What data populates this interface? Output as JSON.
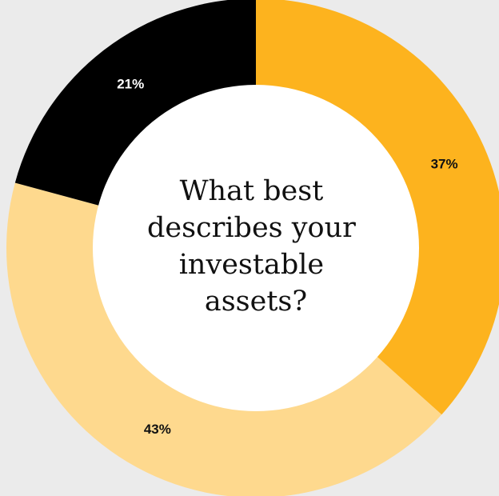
{
  "chart_data": {
    "type": "pie",
    "variant": "donut",
    "title": "",
    "center_text": [
      "What best",
      "describes your",
      "investable",
      "assets?"
    ],
    "slices": [
      {
        "label": "37%",
        "value": 37,
        "color": "#fdb31e",
        "label_color": "#111111"
      },
      {
        "label": "43%",
        "value": 43,
        "color": "#fed98e",
        "label_color": "#111111"
      },
      {
        "label": "21%",
        "value": 21,
        "color": "#000000",
        "label_color": "#ffffff"
      }
    ],
    "start": "top",
    "direction": "clockwise",
    "legend": "none"
  }
}
